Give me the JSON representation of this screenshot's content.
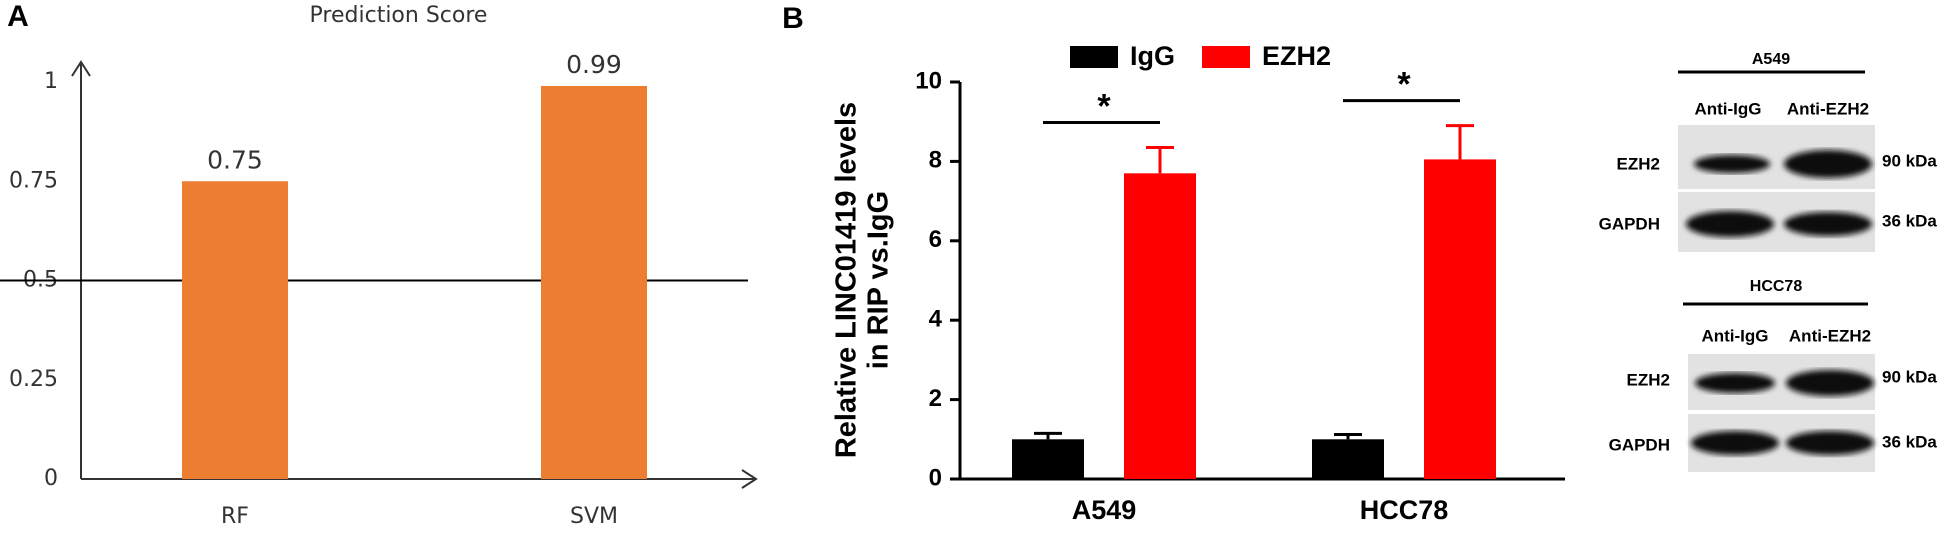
{
  "chart_data": [
    {
      "type": "bar",
      "panel": "A",
      "title": "Prediction Score",
      "categories": [
        "RF",
        "SVM"
      ],
      "values": [
        0.75,
        0.99
      ],
      "color": "#ed7d31",
      "ylim": [
        0,
        1
      ],
      "yticks": [
        0,
        0.25,
        0.5,
        0.75,
        1
      ],
      "reference_line": 0.5
    },
    {
      "type": "bar",
      "panel": "B",
      "ylabel": [
        "Relative LINC01419 levels",
        "in RIP vs.IgG"
      ],
      "categories": [
        "A549",
        "HCC78"
      ],
      "series": [
        {
          "name": "IgG",
          "color": "#000000",
          "values": [
            1.0,
            1.0
          ],
          "errors": [
            0.15,
            0.12
          ]
        },
        {
          "name": "EZH2",
          "color": "#ff0000",
          "values": [
            7.7,
            8.05
          ],
          "errors": [
            0.65,
            0.85
          ]
        }
      ],
      "annotations": [
        "*",
        "*"
      ],
      "ylim": [
        0,
        10
      ],
      "yticks": [
        0,
        2,
        4,
        6,
        8,
        10
      ]
    }
  ],
  "blots": [
    {
      "cell_line": "A549",
      "lanes": [
        "Anti-IgG",
        "Anti-EZH2"
      ],
      "proteins": [
        "EZH2",
        "GAPDH"
      ],
      "sizes": [
        "90 kDa",
        "36 kDa"
      ]
    },
    {
      "cell_line": "HCC78",
      "lanes": [
        "Anti-IgG",
        "Anti-EZH2"
      ],
      "proteins": [
        "EZH2",
        "GAPDH"
      ],
      "sizes": [
        "90 kDa",
        "36 kDa"
      ]
    }
  ]
}
